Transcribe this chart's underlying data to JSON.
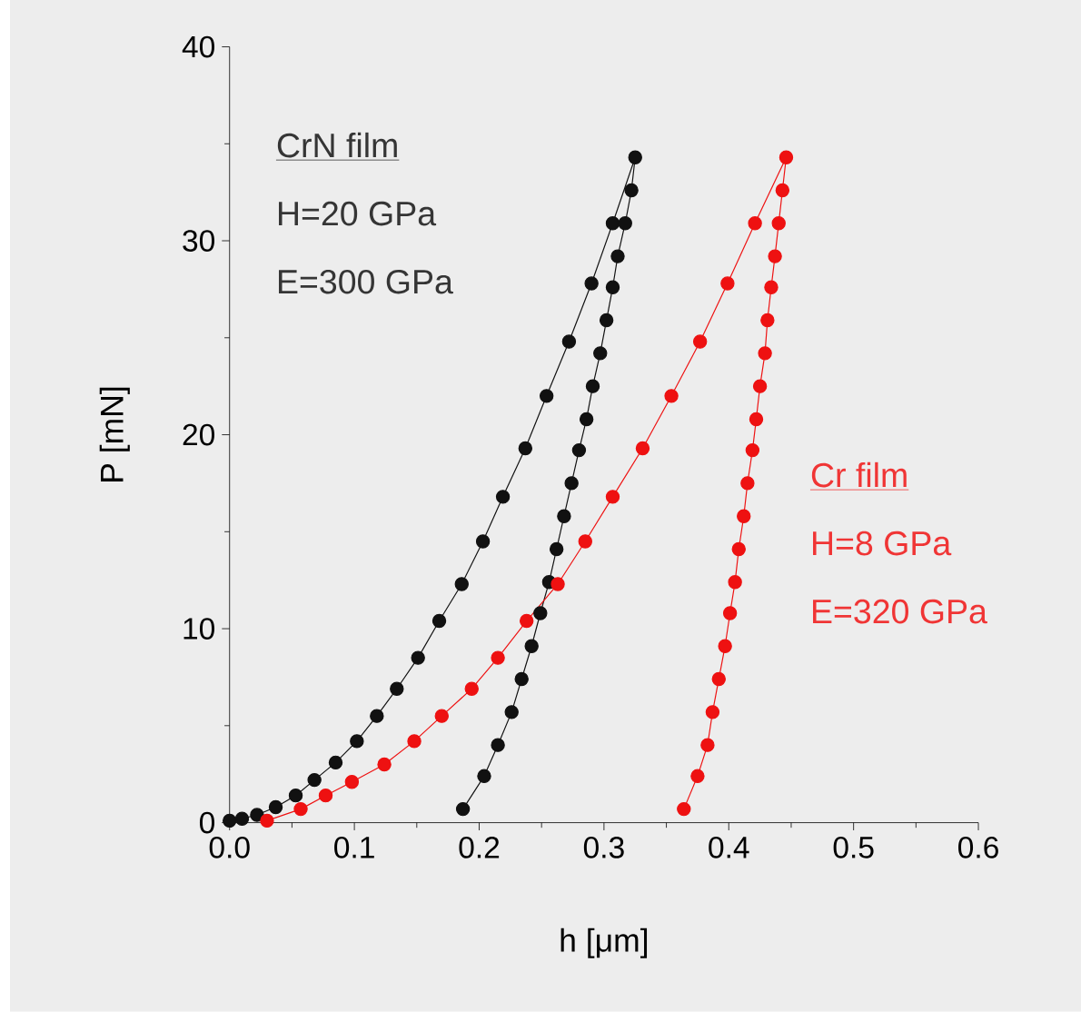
{
  "chart_data": {
    "type": "line",
    "xlabel": "h [μm]",
    "ylabel": "P [mN]",
    "xlim": [
      0,
      0.6
    ],
    "ylim": [
      0,
      40
    ],
    "xticks": [
      {
        "value": 0,
        "label": "0.0"
      },
      0.1,
      0.2,
      0.3,
      0.4,
      0.5,
      0.6
    ],
    "yticks": [
      0,
      10,
      20,
      30,
      40
    ],
    "marker": "circle",
    "line_style": "solid",
    "grid": false,
    "legend": false,
    "annotations": [
      "H=20 GPa",
      "E=300 GPa",
      "H=8 GPa",
      "E=320 GPa"
    ],
    "series": [
      {
        "name": "CrN film",
        "color": "#111111",
        "x": [
          0,
          0.01,
          0.022,
          0.037,
          0.053,
          0.068,
          0.085,
          0.102,
          0.118,
          0.134,
          0.151,
          0.168,
          0.186,
          0.203,
          0.219,
          0.237,
          0.254,
          0.272,
          0.29,
          0.307,
          0.325,
          0.322,
          0.317,
          0.311,
          0.307,
          0.302,
          0.297,
          0.291,
          0.286,
          0.28,
          0.274,
          0.268,
          0.262,
          0.256,
          0.249,
          0.242,
          0.234,
          0.226,
          0.215,
          0.204,
          0.187
        ],
        "values": [
          0.1,
          0.2,
          0.4,
          0.8,
          1.4,
          2.2,
          3.1,
          4.2,
          5.5,
          6.9,
          8.5,
          10.4,
          12.3,
          14.5,
          16.8,
          19.3,
          22.0,
          24.8,
          27.8,
          30.9,
          34.3,
          32.6,
          30.9,
          29.2,
          27.6,
          25.9,
          24.2,
          22.5,
          20.8,
          19.2,
          17.5,
          15.8,
          14.1,
          12.4,
          10.8,
          9.1,
          7.4,
          5.7,
          4.0,
          2.4,
          0.7
        ]
      },
      {
        "name": "Cr film",
        "color": "#ee1111",
        "x": [
          0.03,
          0.057,
          0.077,
          0.098,
          0.124,
          0.148,
          0.17,
          0.194,
          0.215,
          0.238,
          0.263,
          0.285,
          0.307,
          0.331,
          0.354,
          0.377,
          0.399,
          0.421,
          0.446,
          0.443,
          0.44,
          0.437,
          0.434,
          0.431,
          0.429,
          0.425,
          0.422,
          0.419,
          0.415,
          0.412,
          0.408,
          0.405,
          0.401,
          0.397,
          0.392,
          0.387,
          0.383,
          0.375,
          0.364
        ],
        "values": [
          0.1,
          0.7,
          1.4,
          2.1,
          3.0,
          4.2,
          5.5,
          6.9,
          8.5,
          10.4,
          12.3,
          14.5,
          16.8,
          19.3,
          22.0,
          24.8,
          27.8,
          30.9,
          34.3,
          32.6,
          30.9,
          29.2,
          27.6,
          25.9,
          24.2,
          22.5,
          20.8,
          19.2,
          17.5,
          15.8,
          14.1,
          12.4,
          10.8,
          9.1,
          7.4,
          5.7,
          4.0,
          2.4,
          0.7
        ]
      }
    ]
  }
}
